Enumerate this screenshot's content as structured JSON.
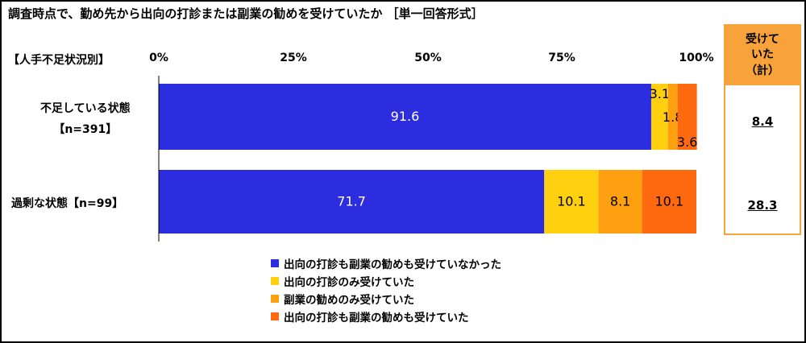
{
  "title": "調査時点で、勤め先から出向の打診または副業の勧めを受けていたか ［単一回答形式］",
  "condition_label": "【人手不足状況別】",
  "chart_data": {
    "type": "bar",
    "orientation": "horizontal-stacked-100",
    "xlim": [
      0,
      100
    ],
    "xticks": [
      "0%",
      "25%",
      "50%",
      "75%",
      "100%"
    ],
    "categories": [
      [
        "不足している状態",
        "【n=391】"
      ],
      [
        "過剰な状態【n=99】"
      ]
    ],
    "series": [
      {
        "name": "出向の打診も副業の勧めも受けていなかった",
        "color": "#2d2de0",
        "values": [
          91.6,
          71.7
        ]
      },
      {
        "name": "出向の打診のみ受けていた",
        "color": "#ffd010",
        "values": [
          3.1,
          10.1
        ]
      },
      {
        "name": "副業の勧めのみ受けていた",
        "color": "#ffa010",
        "values": [
          1.8,
          8.1
        ]
      },
      {
        "name": "出向の打診も副業の勧めも受けていた",
        "color": "#ff6a10",
        "values": [
          3.6,
          10.1
        ]
      }
    ],
    "totals": {
      "header": [
        "受けて",
        "いた（計）"
      ],
      "values": [
        "8.4",
        "28.3"
      ]
    }
  },
  "colors": {
    "total_header_bg": "#f7a23b",
    "total_border": "#f7a23b"
  }
}
